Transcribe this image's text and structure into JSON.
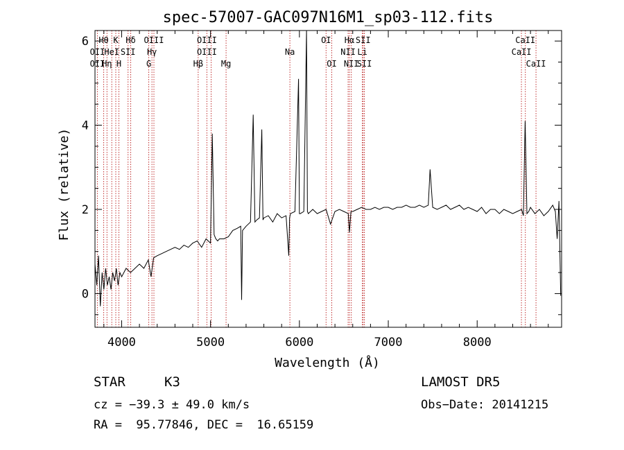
{
  "chart_data": {
    "type": "line",
    "title": "spec-57007-GAC097N16M1_sp03-112.fits",
    "xlabel": "Wavelength (Å)",
    "ylabel": "Flux (relative)",
    "xlim": [
      3700,
      8950
    ],
    "ylim": [
      -0.8,
      6.25
    ],
    "x_ticks": [
      4000,
      5000,
      6000,
      7000,
      8000
    ],
    "y_ticks": [
      0,
      2,
      4,
      6
    ],
    "grid": false,
    "series": [
      {
        "x": [
          3700,
          3720,
          3740,
          3760,
          3780,
          3800,
          3820,
          3840,
          3860,
          3880,
          3900,
          3920,
          3940,
          3960,
          3980,
          4000,
          4050,
          4100,
          4150,
          4200,
          4250,
          4300,
          4330,
          4360,
          4400,
          4450,
          4500,
          4550,
          4600,
          4650,
          4700,
          4750,
          4800,
          4850,
          4900,
          4950,
          5000,
          5020,
          5040,
          5060,
          5080,
          5100,
          5150,
          5200,
          5250,
          5300,
          5340,
          5350,
          5360,
          5400,
          5450,
          5480,
          5500,
          5520,
          5550,
          5577,
          5590,
          5600,
          5650,
          5700,
          5750,
          5800,
          5850,
          5880,
          5890,
          5900,
          5950,
          5990,
          6000,
          6010,
          6050,
          6080,
          6090,
          6100,
          6150,
          6200,
          6250,
          6300,
          6350,
          6400,
          6450,
          6500,
          6550,
          6563,
          6580,
          6600,
          6650,
          6700,
          6750,
          6800,
          6850,
          6900,
          6950,
          7000,
          7050,
          7100,
          7150,
          7200,
          7250,
          7300,
          7350,
          7400,
          7450,
          7470,
          7500,
          7550,
          7600,
          7650,
          7700,
          7750,
          7800,
          7850,
          7900,
          7950,
          8000,
          8050,
          8100,
          8150,
          8200,
          8250,
          8300,
          8350,
          8400,
          8450,
          8500,
          8520,
          8540,
          8560,
          8580,
          8600,
          8650,
          8700,
          8750,
          8800,
          8850,
          8880,
          8900,
          8920,
          8940
        ],
        "y": [
          0.7,
          0.2,
          0.9,
          -0.3,
          0.5,
          0.1,
          0.6,
          0.2,
          0.4,
          0.1,
          0.5,
          0.3,
          0.6,
          0.2,
          0.5,
          0.4,
          0.6,
          0.5,
          0.6,
          0.7,
          0.6,
          0.8,
          0.4,
          0.85,
          0.9,
          0.95,
          1.0,
          1.05,
          1.1,
          1.05,
          1.15,
          1.1,
          1.2,
          1.25,
          1.1,
          1.3,
          1.2,
          3.8,
          1.4,
          1.3,
          1.25,
          1.3,
          1.3,
          1.35,
          1.5,
          1.55,
          1.6,
          -0.15,
          1.5,
          1.6,
          1.7,
          4.25,
          1.7,
          1.75,
          1.8,
          3.9,
          1.75,
          1.8,
          1.85,
          1.7,
          1.9,
          1.8,
          1.85,
          0.9,
          1.8,
          1.9,
          1.95,
          5.1,
          1.9,
          1.9,
          1.95,
          6.25,
          1.95,
          1.9,
          2.0,
          1.9,
          1.95,
          2.0,
          1.65,
          1.95,
          2.0,
          1.95,
          1.9,
          1.45,
          1.95,
          1.95,
          2.0,
          2.05,
          2.0,
          2.0,
          2.05,
          2.0,
          2.05,
          2.05,
          2.0,
          2.05,
          2.05,
          2.1,
          2.05,
          2.05,
          2.1,
          2.05,
          2.1,
          2.95,
          2.05,
          2.0,
          2.05,
          2.1,
          2.0,
          2.05,
          2.1,
          2.0,
          2.05,
          2.0,
          1.95,
          2.05,
          1.9,
          2.0,
          2.0,
          1.9,
          2.0,
          1.95,
          1.9,
          1.95,
          2.0,
          1.85,
          4.1,
          1.9,
          1.95,
          2.05,
          1.9,
          2.0,
          1.85,
          1.95,
          2.1,
          1.95,
          1.3,
          2.2,
          -0.05
        ]
      }
    ],
    "line_markers": [
      {
        "name": "Hθ",
        "wavelength": 3798,
        "row": 0
      },
      {
        "name": "OII",
        "wavelength": 3727,
        "row": 1
      },
      {
        "name": "OII",
        "wavelength": 3727,
        "row": 2
      },
      {
        "name": "Hη",
        "wavelength": 3835,
        "row": 2
      },
      {
        "name": "HeI",
        "wavelength": 3889,
        "row": 1
      },
      {
        "name": "K",
        "wavelength": 3934,
        "row": 0
      },
      {
        "name": "H",
        "wavelength": 3969,
        "row": 2
      },
      {
        "name": "Hδ",
        "wavelength": 4102,
        "row": 0
      },
      {
        "name": "SII",
        "wavelength": 4072,
        "row": 1
      },
      {
        "name": "OIII",
        "wavelength": 4363,
        "row": 0
      },
      {
        "name": "Hγ",
        "wavelength": 4341,
        "row": 1
      },
      {
        "name": "G",
        "wavelength": 4305,
        "row": 2
      },
      {
        "name": "OIII",
        "wavelength": 4959,
        "row": 0
      },
      {
        "name": "OIII",
        "wavelength": 4959,
        "row": 1
      },
      {
        "name": "Hβ",
        "wavelength": 4861,
        "row": 2
      },
      {
        "name": "Mg",
        "wavelength": 5175,
        "row": 2
      },
      {
        "name": "Na",
        "wavelength": 5893,
        "row": 1
      },
      {
        "name": "OI",
        "wavelength": 6300,
        "row": 0
      },
      {
        "name": "OI",
        "wavelength": 6364,
        "row": 2
      },
      {
        "name": "Hα",
        "wavelength": 6563,
        "row": 0
      },
      {
        "name": "NII",
        "wavelength": 6548,
        "row": 1
      },
      {
        "name": "NII",
        "wavelength": 6584,
        "row": 2
      },
      {
        "name": "SII",
        "wavelength": 6717,
        "row": 0
      },
      {
        "name": "Li",
        "wavelength": 6708,
        "row": 1
      },
      {
        "name": "SII",
        "wavelength": 6731,
        "row": 2
      },
      {
        "name": "CaII",
        "wavelength": 8542,
        "row": 0
      },
      {
        "name": "CaII",
        "wavelength": 8498,
        "row": 1
      },
      {
        "name": "CaII",
        "wavelength": 8662,
        "row": 2
      }
    ],
    "marker_lines": [
      3727,
      3798,
      3835,
      3889,
      3934,
      3969,
      4072,
      4102,
      4305,
      4341,
      4363,
      4861,
      4959,
      5007,
      5175,
      5893,
      6300,
      6364,
      6548,
      6563,
      6584,
      6708,
      6717,
      6731,
      8498,
      8542,
      8662
    ]
  },
  "info": {
    "object_class": "STAR",
    "subclass": "K3",
    "survey": "LAMOST DR5",
    "redshift": "cz = −39.3 ± 49.0 km/s",
    "obs_date": "Obs−Date: 20141215",
    "coords": "RA =  95.77846, DEC =  16.65159"
  }
}
